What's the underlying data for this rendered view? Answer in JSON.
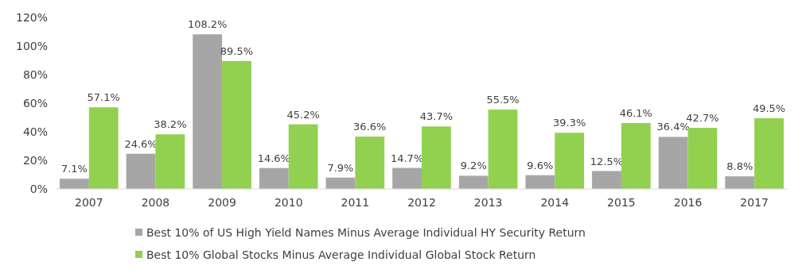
{
  "chart_data": {
    "type": "bar",
    "categories": [
      "2007",
      "2008",
      "2009",
      "2010",
      "2011",
      "2012",
      "2013",
      "2014",
      "2015",
      "2016",
      "2017"
    ],
    "series": [
      {
        "name": "Best 10% of US High Yield Names Minus Average Individual HY Security Return",
        "color": "#a6a6a6",
        "values": [
          7.1,
          24.6,
          108.2,
          14.6,
          7.9,
          14.7,
          9.2,
          9.6,
          12.5,
          36.4,
          8.8
        ],
        "value_labels": [
          "7.1%",
          "24.6%",
          "108.2%",
          "14.6%",
          "7.9%",
          "14.7%",
          "9.2%",
          "9.6%",
          "12.5%",
          "36.4%",
          "8.8%"
        ]
      },
      {
        "name": "Best 10% Global Stocks Minus Average Individual Global Stock Return",
        "color": "#92d050",
        "values": [
          57.1,
          38.2,
          89.5,
          45.2,
          36.6,
          43.7,
          55.5,
          39.3,
          46.1,
          42.7,
          49.5
        ],
        "value_labels": [
          "57.1%",
          "38.2%",
          "89.5%",
          "45.2%",
          "36.6%",
          "43.7%",
          "55.5%",
          "39.3%",
          "46.1%",
          "42.7%",
          "49.5%"
        ]
      }
    ],
    "ylim": [
      0,
      120
    ],
    "yticks": [
      {
        "value": 0,
        "label": "0%"
      },
      {
        "value": 20,
        "label": "20%"
      },
      {
        "value": 40,
        "label": "40%"
      },
      {
        "value": 60,
        "label": "60%"
      },
      {
        "value": 80,
        "label": "80%"
      },
      {
        "value": 100,
        "label": "100%"
      },
      {
        "value": 120,
        "label": "120%"
      }
    ],
    "grid": false,
    "legend": "bottom"
  }
}
